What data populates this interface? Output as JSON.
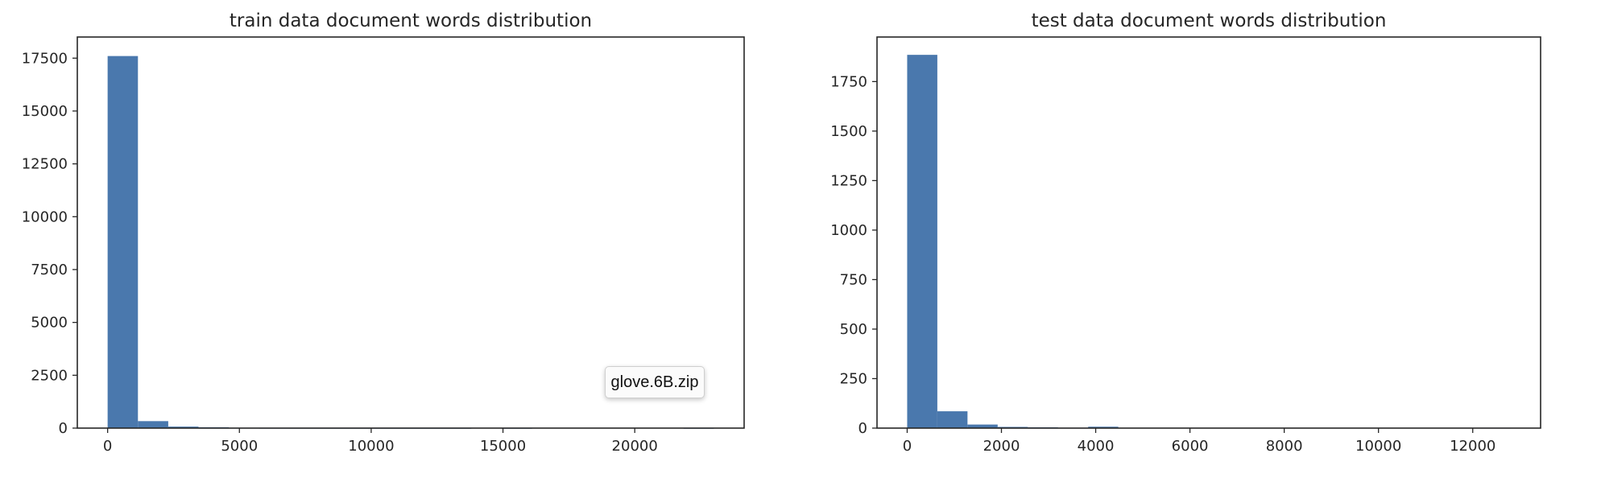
{
  "chart_data": [
    {
      "type": "bar",
      "subtype": "histogram",
      "title": "train data document words distribution",
      "xlabel": "",
      "ylabel": "",
      "color": "#4a78ad",
      "xlim": [
        -1150,
        24150
      ],
      "ylim": [
        0,
        18500
      ],
      "xticks": [
        0,
        5000,
        10000,
        15000,
        20000
      ],
      "yticks": [
        0,
        2500,
        5000,
        7500,
        10000,
        12500,
        15000,
        17500
      ],
      "bins": [
        {
          "x0": 0,
          "x1": 1150,
          "value": 17600
        },
        {
          "x0": 1150,
          "x1": 2300,
          "value": 330
        },
        {
          "x0": 2300,
          "x1": 3450,
          "value": 70
        },
        {
          "x0": 3450,
          "x1": 4600,
          "value": 40
        },
        {
          "x0": 4600,
          "x1": 5750,
          "value": 10
        },
        {
          "x0": 5750,
          "x1": 6900,
          "value": 5
        },
        {
          "x0": 6900,
          "x1": 8050,
          "value": 3
        },
        {
          "x0": 8050,
          "x1": 9200,
          "value": 2
        },
        {
          "x0": 9200,
          "x1": 10350,
          "value": 2
        },
        {
          "x0": 10350,
          "x1": 11500,
          "value": 1
        },
        {
          "x0": 11500,
          "x1": 12650,
          "value": 1
        },
        {
          "x0": 12650,
          "x1": 13800,
          "value": 1
        },
        {
          "x0": 13800,
          "x1": 14950,
          "value": 0
        },
        {
          "x0": 14950,
          "x1": 16100,
          "value": 1
        },
        {
          "x0": 16100,
          "x1": 17250,
          "value": 0
        },
        {
          "x0": 17250,
          "x1": 18400,
          "value": 0
        },
        {
          "x0": 18400,
          "x1": 19550,
          "value": 0
        },
        {
          "x0": 19550,
          "x1": 20700,
          "value": 0
        },
        {
          "x0": 20700,
          "x1": 21850,
          "value": 0
        },
        {
          "x0": 21850,
          "x1": 23000,
          "value": 1
        }
      ]
    },
    {
      "type": "bar",
      "subtype": "histogram",
      "title": "test data document words distribution",
      "xlabel": "",
      "ylabel": "",
      "color": "#4a78ad",
      "xlim": [
        -640,
        13440
      ],
      "ylim": [
        0,
        1975
      ],
      "xticks": [
        0,
        2000,
        4000,
        6000,
        8000,
        10000,
        12000
      ],
      "yticks": [
        0,
        250,
        500,
        750,
        1000,
        1250,
        1500,
        1750
      ],
      "bins": [
        {
          "x0": 0,
          "x1": 640,
          "value": 1885
        },
        {
          "x0": 640,
          "x1": 1280,
          "value": 85
        },
        {
          "x0": 1280,
          "x1": 1920,
          "value": 18
        },
        {
          "x0": 1920,
          "x1": 2560,
          "value": 6
        },
        {
          "x0": 2560,
          "x1": 3200,
          "value": 4
        },
        {
          "x0": 3200,
          "x1": 3840,
          "value": 1
        },
        {
          "x0": 3840,
          "x1": 4480,
          "value": 7
        },
        {
          "x0": 4480,
          "x1": 5120,
          "value": 0
        },
        {
          "x0": 5120,
          "x1": 5760,
          "value": 0
        },
        {
          "x0": 5760,
          "x1": 6400,
          "value": 0
        },
        {
          "x0": 6400,
          "x1": 7040,
          "value": 0
        },
        {
          "x0": 7040,
          "x1": 7680,
          "value": 0
        },
        {
          "x0": 7680,
          "x1": 8320,
          "value": 0
        },
        {
          "x0": 8320,
          "x1": 8960,
          "value": 0
        },
        {
          "x0": 8960,
          "x1": 9600,
          "value": 0
        },
        {
          "x0": 9600,
          "x1": 10240,
          "value": 0
        },
        {
          "x0": 10240,
          "x1": 10880,
          "value": 0
        },
        {
          "x0": 10880,
          "x1": 11520,
          "value": 0
        },
        {
          "x0": 11520,
          "x1": 12160,
          "value": 0
        },
        {
          "x0": 12160,
          "x1": 12800,
          "value": 1
        }
      ]
    }
  ],
  "tooltip": {
    "text": "glove.6B.zip"
  }
}
